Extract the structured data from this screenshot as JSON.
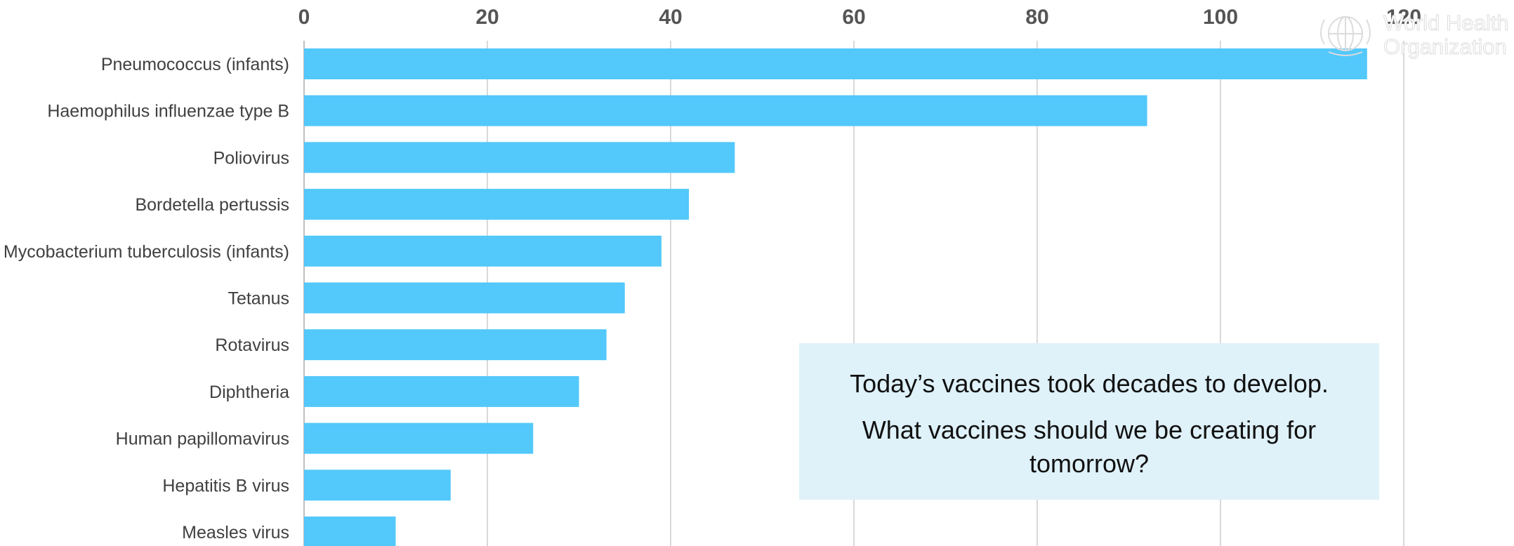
{
  "chart_data": {
    "type": "bar",
    "orientation": "horizontal",
    "categories": [
      "Pneumococcus (infants)",
      "Haemophilus influenzae type B",
      "Poliovirus",
      "Bordetella pertussis",
      "Mycobacterium tuberculosis (infants)",
      "Tetanus",
      "Rotavirus",
      "Diphtheria",
      "Human papillomavirus",
      "Hepatitis B virus",
      "Measles virus"
    ],
    "values": [
      116,
      92,
      47,
      42,
      39,
      35,
      33,
      30,
      25,
      16,
      10
    ],
    "title": "",
    "xlabel": "",
    "ylabel": "",
    "xlim": [
      0,
      120
    ],
    "xticks": [
      "0",
      "20",
      "40",
      "60",
      "80",
      "100",
      "120"
    ],
    "x_axis_position": "top",
    "grid": "vertical",
    "bar_color": "#53c8fb",
    "grid_color": "#d9d9d9"
  },
  "callout": {
    "line1": "Today’s vaccines took decades to develop.",
    "line2": "What vaccines should we be creating for tomorrow?"
  },
  "logo": {
    "line1": "World Health",
    "line2": "Organization",
    "icon": "who-emblem-icon"
  }
}
